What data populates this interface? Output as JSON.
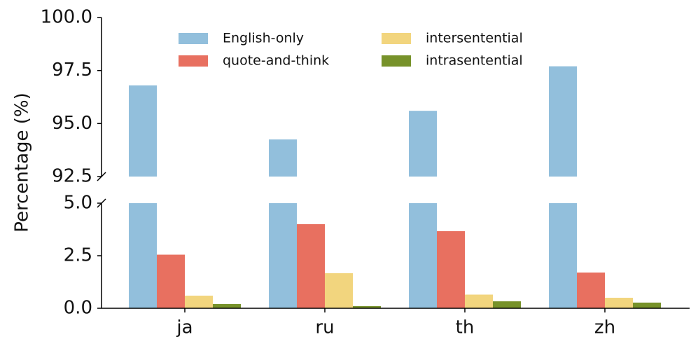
{
  "chart_data": {
    "type": "bar",
    "ylabel": "Percentage (%)",
    "categories": [
      "ja",
      "ru",
      "th",
      "zh"
    ],
    "series": [
      {
        "name": "English-only",
        "color": "#92bfdc",
        "values": [
          96.8,
          94.25,
          95.6,
          97.7
        ]
      },
      {
        "name": "quote-and-think",
        "color": "#e87060",
        "values": [
          2.55,
          4.0,
          3.67,
          1.7
        ]
      },
      {
        "name": "intersentential",
        "color": "#f2d57e",
        "values": [
          0.6,
          1.67,
          0.65,
          0.5
        ]
      },
      {
        "name": "intrasentential",
        "color": "#77922a",
        "values": [
          0.2,
          0.1,
          0.33,
          0.27
        ]
      }
    ],
    "ylim_upper": [
      92.5,
      100
    ],
    "yticks_upper": [
      {
        "value": 100,
        "label": "100.0"
      },
      97.5,
      {
        "value": 95,
        "label": "95.0"
      },
      92.5
    ],
    "ylim_lower": [
      0,
      5
    ],
    "yticks_lower": [
      {
        "value": 5,
        "label": "5.0"
      },
      2.5,
      {
        "value": 0,
        "label": "0.0"
      }
    ]
  }
}
